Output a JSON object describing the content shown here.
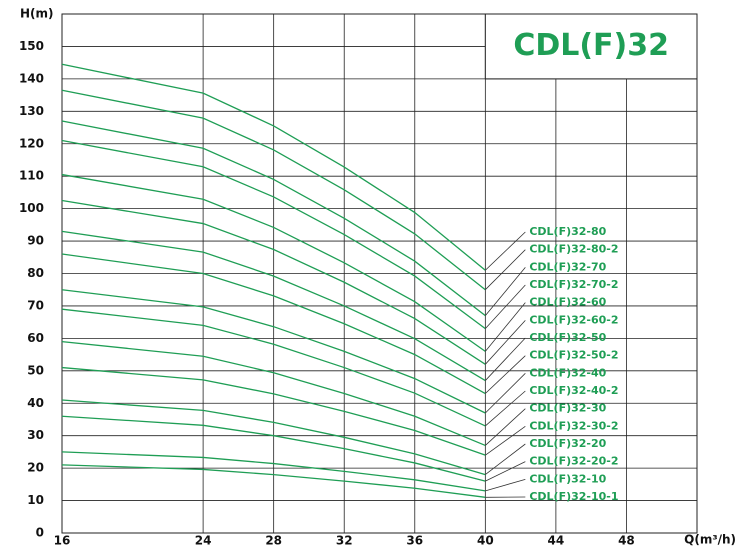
{
  "chart_data": {
    "type": "line",
    "title": "CDL(F)32",
    "x_label": "Q(m³/h)",
    "y_label": "H(m)",
    "x": [
      16,
      24,
      28,
      32,
      36,
      40
    ],
    "xlim": [
      16,
      52
    ],
    "xticks": [
      16,
      24,
      28,
      32,
      36,
      40,
      44,
      48
    ],
    "ylim": [
      0,
      160
    ],
    "yticks": [
      0,
      10,
      20,
      30,
      40,
      50,
      60,
      70,
      80,
      90,
      100,
      110,
      120,
      130,
      140,
      150
    ],
    "grid": true,
    "series": [
      {
        "name": "CDL(F)32-80",
        "color": "#1f9e55",
        "values": [
          144.5,
          135.6,
          125.5,
          112.8,
          98.8,
          81
        ]
      },
      {
        "name": "CDL(F)32-80-2",
        "color": "#1f9e55",
        "values": [
          136.5,
          127.9,
          118.1,
          105.8,
          92.2,
          75
        ]
      },
      {
        "name": "CDL(F)32-70",
        "color": "#1f9e55",
        "values": [
          127,
          118.6,
          109,
          97,
          83.8,
          67
        ]
      },
      {
        "name": "CDL(F)32-70-2",
        "color": "#1f9e55",
        "values": [
          121,
          112.9,
          103.6,
          92,
          79.2,
          63
        ]
      },
      {
        "name": "CDL(F)32-60",
        "color": "#1f9e55",
        "values": [
          110.5,
          102.9,
          94.2,
          83.3,
          71.3,
          56
        ]
      },
      {
        "name": "CDL(F)32-60-2",
        "color": "#1f9e55",
        "values": [
          102.5,
          95.4,
          87.4,
          77.3,
          66.1,
          52
        ]
      },
      {
        "name": "CDL(F)32-50",
        "color": "#1f9e55",
        "values": [
          93,
          86.6,
          79.2,
          70,
          59.9,
          47
        ]
      },
      {
        "name": "CDL(F)32-50-2",
        "color": "#1f9e55",
        "values": [
          86,
          80,
          73.1,
          64.5,
          55,
          43
        ]
      },
      {
        "name": "CDL(F)32-40",
        "color": "#1f9e55",
        "values": [
          75,
          69.7,
          63.6,
          56,
          47.6,
          37
        ]
      },
      {
        "name": "CDL(F)32-40-2",
        "color": "#1f9e55",
        "values": [
          69,
          64,
          58.2,
          51,
          43.1,
          33
        ]
      },
      {
        "name": "CDL(F)32-30",
        "color": "#1f9e55",
        "values": [
          59,
          54.5,
          49.4,
          43,
          36,
          27
        ]
      },
      {
        "name": "CDL(F)32-30-2",
        "color": "#1f9e55",
        "values": [
          51,
          47.2,
          42.9,
          37.5,
          31.6,
          24
        ]
      },
      {
        "name": "CDL(F)32-20",
        "color": "#1f9e55",
        "values": [
          41,
          37.8,
          34.1,
          29.5,
          24.4,
          18
        ]
      },
      {
        "name": "CDL(F)32-20-2",
        "color": "#1f9e55",
        "values": [
          36,
          33.2,
          30,
          26,
          21.6,
          16
        ]
      },
      {
        "name": "CDL(F)32-10",
        "color": "#1f9e55",
        "values": [
          25,
          23.3,
          21.4,
          19,
          16.4,
          13
        ]
      },
      {
        "name": "CDL(F)32-10-1",
        "color": "#1f9e55",
        "values": [
          21,
          19.6,
          18,
          16,
          13.8,
          11
        ]
      }
    ]
  }
}
